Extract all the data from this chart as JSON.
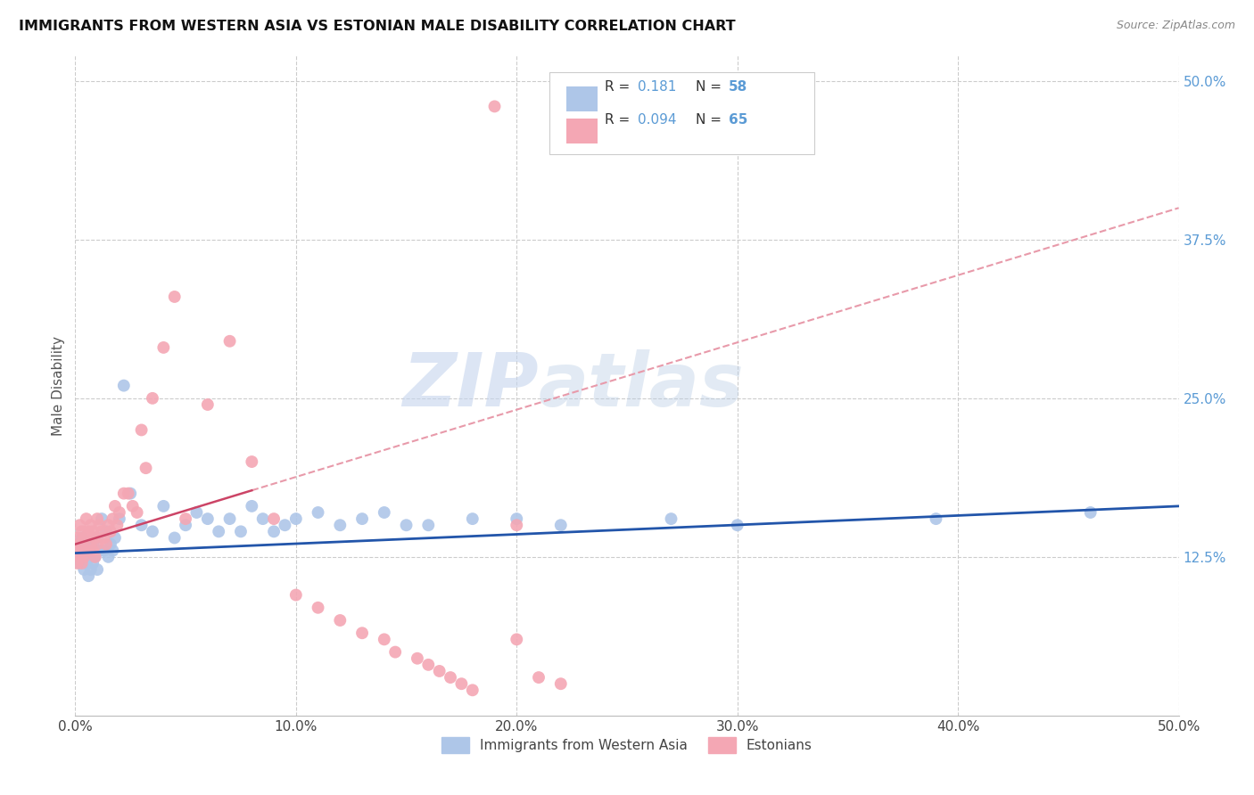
{
  "title": "IMMIGRANTS FROM WESTERN ASIA VS ESTONIAN MALE DISABILITY CORRELATION CHART",
  "source": "Source: ZipAtlas.com",
  "ylabel": "Male Disability",
  "xlim": [
    0.0,
    0.5
  ],
  "ylim": [
    0.0,
    0.52
  ],
  "xtick_labels": [
    "0.0%",
    "10.0%",
    "20.0%",
    "30.0%",
    "40.0%",
    "50.0%"
  ],
  "xtick_vals": [
    0.0,
    0.1,
    0.2,
    0.3,
    0.4,
    0.5
  ],
  "ytick_labels_right": [
    "50.0%",
    "37.5%",
    "25.0%",
    "12.5%"
  ],
  "ytick_vals": [
    0.5,
    0.375,
    0.25,
    0.125
  ],
  "right_axis_color": "#5b9bd5",
  "blue_color": "#aec6e8",
  "pink_color": "#f4a7b4",
  "blue_line_color": "#2255aa",
  "pink_line_color": "#cc4466",
  "pink_dash_color": "#e89aaa",
  "watermark_text": "ZIPatlas",
  "watermark_color": "#d0dff5",
  "legend_R1": "0.181",
  "legend_N1": "58",
  "legend_R2": "0.094",
  "legend_N2": "65",
  "blue_scatter_x": [
    0.001,
    0.002,
    0.002,
    0.003,
    0.003,
    0.004,
    0.004,
    0.005,
    0.005,
    0.006,
    0.006,
    0.007,
    0.007,
    0.008,
    0.008,
    0.009,
    0.009,
    0.01,
    0.01,
    0.011,
    0.012,
    0.013,
    0.014,
    0.015,
    0.016,
    0.017,
    0.018,
    0.02,
    0.022,
    0.025,
    0.03,
    0.035,
    0.04,
    0.045,
    0.05,
    0.055,
    0.06,
    0.065,
    0.07,
    0.075,
    0.08,
    0.085,
    0.09,
    0.095,
    0.1,
    0.11,
    0.12,
    0.13,
    0.14,
    0.15,
    0.16,
    0.18,
    0.2,
    0.22,
    0.27,
    0.3,
    0.39,
    0.46
  ],
  "blue_scatter_y": [
    0.135,
    0.128,
    0.12,
    0.14,
    0.13,
    0.125,
    0.115,
    0.135,
    0.12,
    0.13,
    0.11,
    0.125,
    0.115,
    0.135,
    0.12,
    0.13,
    0.125,
    0.14,
    0.115,
    0.13,
    0.155,
    0.13,
    0.145,
    0.125,
    0.135,
    0.13,
    0.14,
    0.155,
    0.26,
    0.175,
    0.15,
    0.145,
    0.165,
    0.14,
    0.15,
    0.16,
    0.155,
    0.145,
    0.155,
    0.145,
    0.165,
    0.155,
    0.145,
    0.15,
    0.155,
    0.16,
    0.15,
    0.155,
    0.16,
    0.15,
    0.15,
    0.155,
    0.155,
    0.15,
    0.155,
    0.15,
    0.155,
    0.16
  ],
  "pink_scatter_x": [
    0.001,
    0.001,
    0.001,
    0.002,
    0.002,
    0.002,
    0.003,
    0.003,
    0.003,
    0.004,
    0.004,
    0.005,
    0.005,
    0.005,
    0.006,
    0.006,
    0.007,
    0.007,
    0.008,
    0.008,
    0.009,
    0.009,
    0.01,
    0.01,
    0.011,
    0.012,
    0.013,
    0.014,
    0.015,
    0.016,
    0.017,
    0.018,
    0.019,
    0.02,
    0.022,
    0.024,
    0.026,
    0.028,
    0.03,
    0.032,
    0.035,
    0.04,
    0.045,
    0.05,
    0.06,
    0.07,
    0.08,
    0.09,
    0.1,
    0.11,
    0.12,
    0.13,
    0.14,
    0.145,
    0.155,
    0.16,
    0.165,
    0.17,
    0.175,
    0.18,
    0.19,
    0.2,
    0.2,
    0.21,
    0.22
  ],
  "pink_scatter_y": [
    0.14,
    0.13,
    0.12,
    0.15,
    0.135,
    0.125,
    0.145,
    0.13,
    0.12,
    0.14,
    0.125,
    0.155,
    0.14,
    0.13,
    0.145,
    0.13,
    0.15,
    0.135,
    0.145,
    0.13,
    0.14,
    0.125,
    0.155,
    0.135,
    0.15,
    0.145,
    0.14,
    0.135,
    0.15,
    0.145,
    0.155,
    0.165,
    0.15,
    0.16,
    0.175,
    0.175,
    0.165,
    0.16,
    0.225,
    0.195,
    0.25,
    0.29,
    0.33,
    0.155,
    0.245,
    0.295,
    0.2,
    0.155,
    0.095,
    0.085,
    0.075,
    0.065,
    0.06,
    0.05,
    0.045,
    0.04,
    0.035,
    0.03,
    0.025,
    0.02,
    0.48,
    0.15,
    0.06,
    0.03,
    0.025
  ],
  "blue_trendline_x": [
    0.0,
    0.5
  ],
  "blue_trendline_y": [
    0.128,
    0.165
  ],
  "pink_trendline_x": [
    0.0,
    0.5
  ],
  "pink_trendline_y": [
    0.135,
    0.4
  ]
}
